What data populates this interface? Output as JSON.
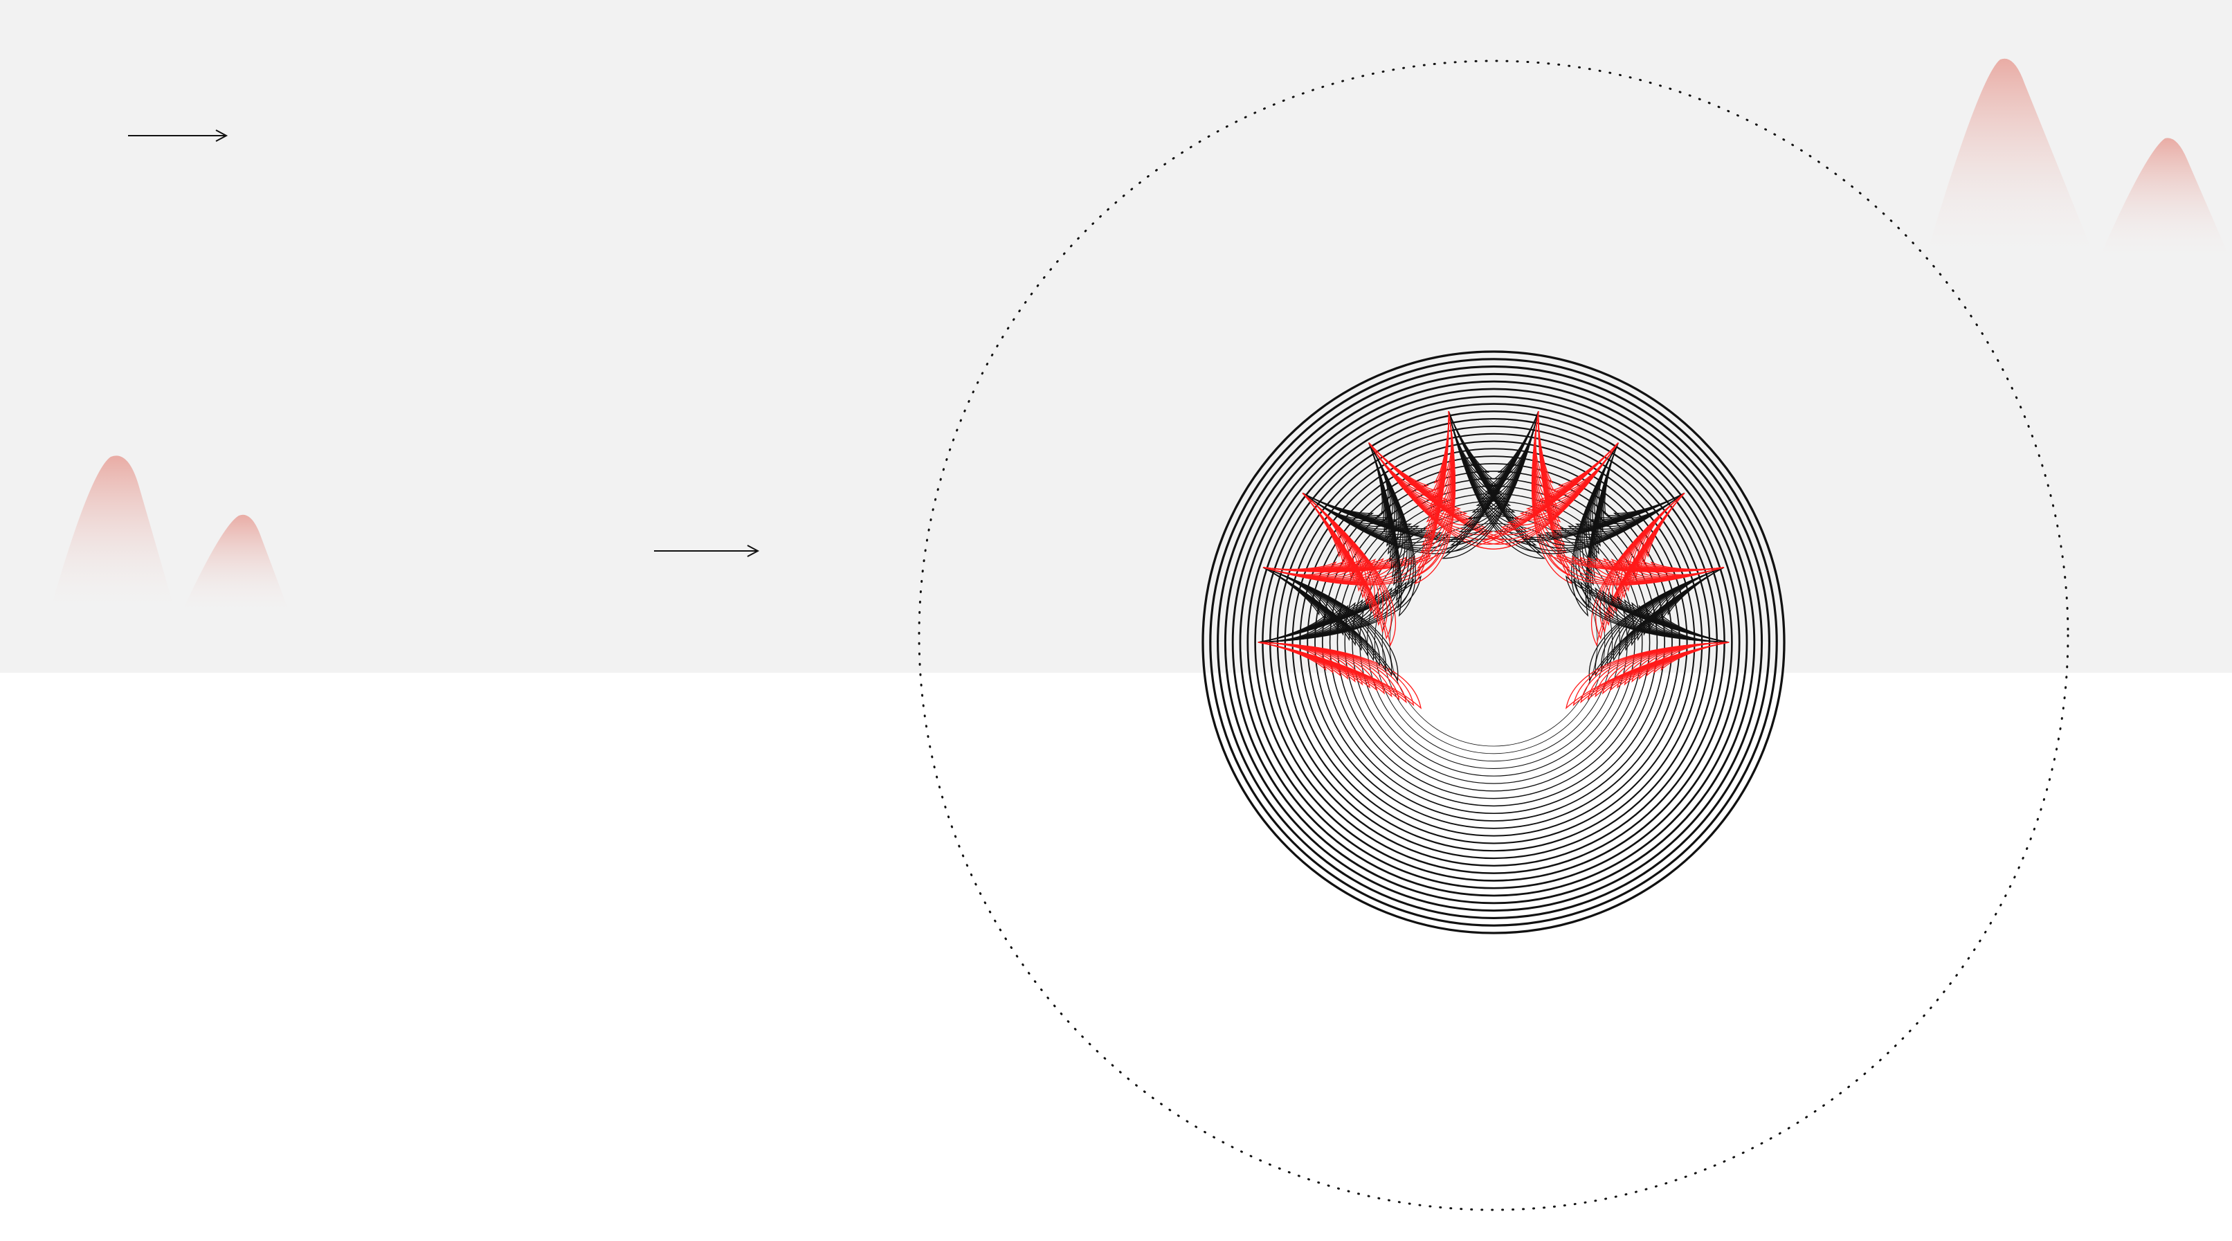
{
  "colors": {
    "top_band": "#f2f2f2",
    "page_background": "#ffffff",
    "accent_red": "#ff1a1a",
    "ink_black": "#111111",
    "mountain_pink": "#e8a49c"
  },
  "icons": {
    "arrow_top": "arrow-right-icon",
    "arrow_middle": "arrow-right-icon",
    "mountains_left": "mountain-icon",
    "mountains_right": "mountain-icon",
    "rings": "concentric-circles-icon",
    "petals": "leaf-petal-icon",
    "orbit": "dotted-circle-icon"
  }
}
